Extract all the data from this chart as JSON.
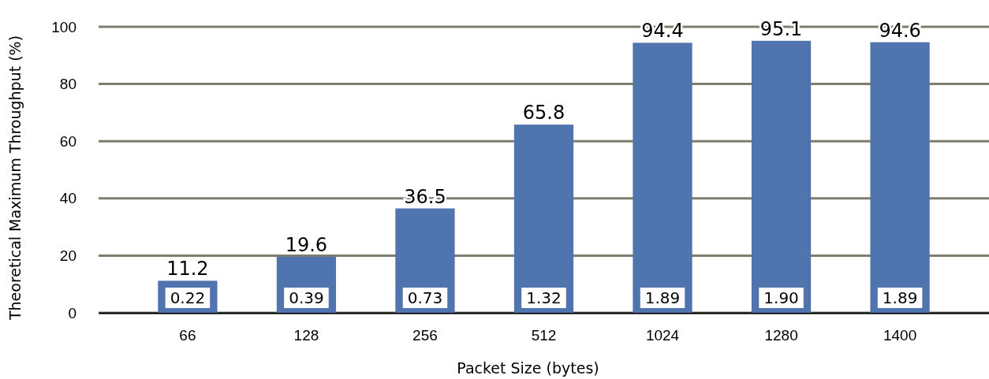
{
  "chart_data": {
    "type": "bar",
    "xlabel": "Packet Size (bytes)",
    "ylabel": "Theoretical Maximum Throughput (%)",
    "categories": [
      "66",
      "128",
      "256",
      "512",
      "1024",
      "1280",
      "1400"
    ],
    "values": [
      11.2,
      19.6,
      36.5,
      65.8,
      94.4,
      95.1,
      94.6
    ],
    "color": "#5074ae",
    "ylim": [
      0,
      100
    ],
    "yticks": [
      0,
      20,
      40,
      60,
      80,
      100
    ],
    "grid": "y",
    "data_labels": true,
    "annotations": [
      "0.22",
      "0.39",
      "0.73",
      "1.32",
      "1.89",
      "1.90",
      "1.89"
    ]
  }
}
